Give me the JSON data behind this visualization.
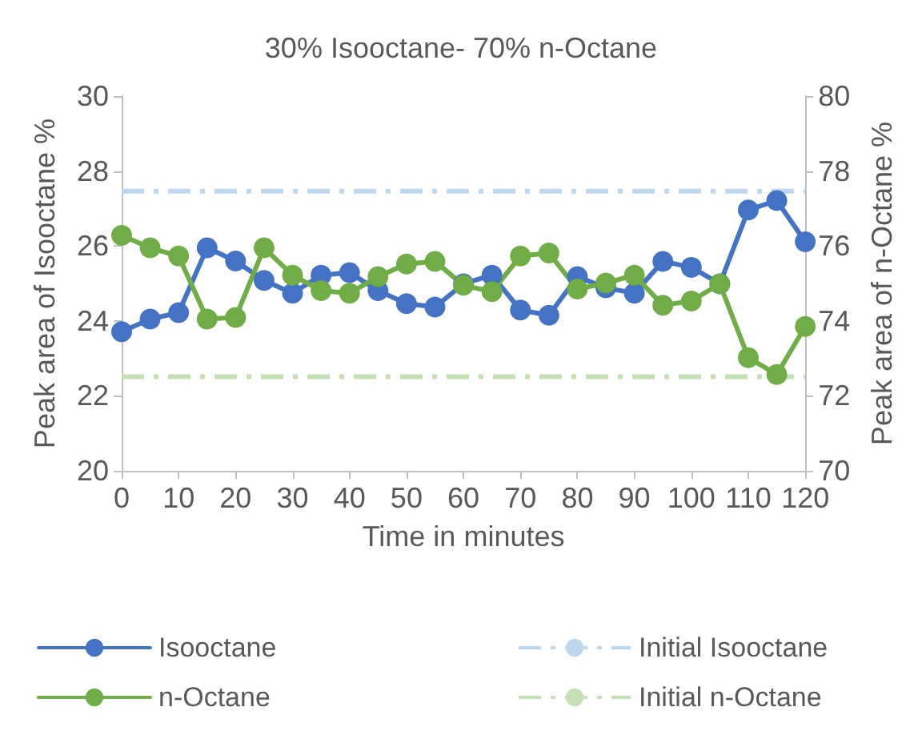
{
  "chart_data": {
    "type": "line",
    "title": "30% Isooctane- 70% n-Octane",
    "xlabel": "Time in minutes",
    "ylabel": "Peak area of Isooctane %",
    "y2label": "Peak area of n-Octane %",
    "x": [
      0,
      5,
      10,
      15,
      20,
      25,
      30,
      35,
      40,
      45,
      50,
      55,
      60,
      65,
      70,
      75,
      80,
      85,
      90,
      95,
      100,
      105,
      110,
      115,
      120
    ],
    "series": [
      {
        "name": "Isooctane",
        "color": "#4472c4",
        "values": [
          23.71,
          24.05,
          24.22,
          25.95,
          25.6,
          25.08,
          24.74,
          25.22,
          25.29,
          24.81,
          24.46,
          24.37,
          24.99,
          25.22,
          24.29,
          24.15,
          25.18,
          24.88,
          24.74,
          25.59,
          25.43,
          24.99,
          26.96,
          27.21,
          26.11
        ]
      },
      {
        "name": "n-Octane",
        "color": "#70ad47",
        "axis": "y2",
        "values": [
          76.28,
          75.95,
          75.73,
          74.05,
          74.09,
          75.95,
          75.22,
          74.81,
          74.74,
          75.18,
          75.52,
          75.59,
          74.95,
          74.78,
          75.73,
          75.81,
          74.85,
          75.01,
          75.22,
          74.42,
          74.53,
          74.99,
          73.02,
          72.57,
          73.85
        ]
      }
    ],
    "ref_lines": [
      {
        "axis": "y",
        "value": 27.46,
        "label": "Initial Isooctane",
        "color": "#bdd7ee",
        "line_style": "dashed"
      },
      {
        "axis": "y2",
        "value": 72.51,
        "label": "Initial n-Octane",
        "color": "#c5e0b4",
        "line_style": "dashed"
      }
    ],
    "xlim": [
      0,
      120
    ],
    "xticks": [
      0,
      10,
      20,
      30,
      40,
      50,
      60,
      70,
      80,
      90,
      100,
      110,
      120
    ],
    "ylim": [
      20,
      30
    ],
    "yticks": [
      20,
      22,
      24,
      26,
      28,
      30
    ],
    "y2lim": [
      70,
      80
    ],
    "y2ticks": [
      70,
      72,
      74,
      76,
      78,
      80
    ],
    "marker": "circle",
    "line_style": "solid",
    "grid": false,
    "legend": "bottom"
  }
}
